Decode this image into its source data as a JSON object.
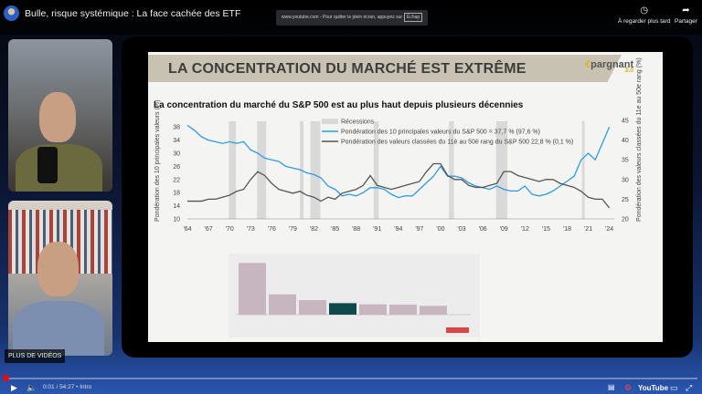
{
  "header": {
    "title": "Bulle, risque systémique : La face cachée des ETF",
    "fullscreen_note": "www.youtube.com - Pour quitter le plein écran, appuyez sur",
    "fullscreen_key": "Échap",
    "watch_later": "À regarder plus tard",
    "share": "Partager"
  },
  "more_videos": "PLUS DE VIDÉOS",
  "slide": {
    "title": "LA CONCENTRATION DU MARCHÉ EST EXTRÊME",
    "logo": "€pargnant",
    "logo_version": "3.0"
  },
  "chart_data": [
    {
      "type": "line",
      "title": "La concentration du marché du S&P 500 est au plus haut depuis plusieurs décennies",
      "ylabel": "Pondération des 10 principales valeurs (%)",
      "ylabel_right": "Pondération des valeurs classées du 11e au 50e rang (%)",
      "x_ticks": [
        "'64",
        "'67",
        "'70",
        "'73",
        "'76",
        "'79",
        "'82",
        "'85",
        "'88",
        "'91",
        "'94",
        "'97",
        "'00",
        "'03",
        "'06",
        "'09",
        "'12",
        "'15",
        "'18",
        "'21",
        "'24"
      ],
      "y_ticks": [
        10,
        14,
        18,
        22,
        26,
        30,
        34,
        38
      ],
      "y_ticks_right": [
        20,
        25,
        30,
        35,
        40,
        45
      ],
      "ylim": [
        10,
        40
      ],
      "ylim_right": [
        20,
        45
      ],
      "legend": [
        "Récessions",
        "Pondération des 10 principales valeurs du S&P 500 = 37,7 % (97,6 %)",
        "Pondération des valeurs classées du 11è au 50è rang du S&P 500 22,8 % (0,1 %)"
      ],
      "recessions": [
        [
          1969.9,
          1970.9
        ],
        [
          1973.9,
          1975.2
        ],
        [
          1980.0,
          1980.5
        ],
        [
          1981.5,
          1982.9
        ],
        [
          1990.5,
          1991.2
        ],
        [
          2001.2,
          2001.9
        ],
        [
          2007.9,
          2009.5
        ],
        [
          2020.1,
          2020.4
        ]
      ],
      "x": [
        1964,
        1965,
        1966,
        1967,
        1968,
        1969,
        1970,
        1971,
        1972,
        1973,
        1974,
        1975,
        1976,
        1977,
        1978,
        1979,
        1980,
        1981,
        1982,
        1983,
        1984,
        1985,
        1986,
        1987,
        1988,
        1989,
        1990,
        1991,
        1992,
        1993,
        1994,
        1995,
        1996,
        1997,
        1998,
        1999,
        2000,
        2001,
        2002,
        2003,
        2004,
        2005,
        2006,
        2007,
        2008,
        2009,
        2010,
        2011,
        2012,
        2013,
        2014,
        2015,
        2016,
        2017,
        2018,
        2019,
        2020,
        2021,
        2022,
        2023,
        2024
      ],
      "series": [
        {
          "name": "Pondération des 10 principales valeurs du S&P 500",
          "axis": "left",
          "color": "#2f9be0",
          "values": [
            38.5,
            37,
            35,
            34,
            33.5,
            33,
            33.5,
            33,
            33.5,
            31,
            30,
            28.5,
            28,
            27.5,
            26,
            25.5,
            25,
            24,
            23.5,
            22.5,
            20,
            19,
            17,
            17.5,
            17,
            18,
            19.5,
            19.5,
            19,
            17.5,
            16.5,
            17,
            17,
            19,
            21,
            23,
            26,
            23,
            23,
            22.5,
            21,
            20,
            19.5,
            19,
            20,
            19,
            18.5,
            18.5,
            20,
            17.5,
            17,
            17.5,
            18.5,
            20,
            21.5,
            23,
            28,
            30,
            28,
            33,
            38
          ]
        },
        {
          "name": "Pondération des valeurs classées du 11è au 50è rang du S&P 500",
          "axis": "right",
          "color": "#555555",
          "values": [
            24.5,
            24.5,
            24.5,
            25,
            25,
            25.5,
            26,
            27,
            27.5,
            30,
            32,
            31,
            29,
            27.5,
            27,
            26.5,
            27,
            26,
            25.5,
            24.5,
            25.5,
            25,
            26.5,
            27,
            27.5,
            28.5,
            31,
            28.5,
            28,
            27.5,
            28,
            28.5,
            29,
            29.5,
            32,
            34,
            34,
            31,
            30,
            30,
            28.5,
            28,
            28,
            28.5,
            29,
            32,
            32,
            31,
            30.5,
            30,
            29.5,
            30,
            30,
            29,
            28.5,
            28,
            27,
            25.5,
            25,
            25,
            22.8
          ]
        }
      ]
    },
    {
      "type": "bar",
      "values": [
        13.5,
        5.3,
        3.8,
        3.0,
        2.7,
        2.6,
        2.3
      ],
      "highlight_index": 3,
      "colors": {
        "bar": "#c7b5c0",
        "highlight": "#0f4a4c"
      }
    }
  ],
  "controls": {
    "time": "0:01 / 54:27 • Intro",
    "progress": 0.0003,
    "youtube": "YouTube"
  }
}
